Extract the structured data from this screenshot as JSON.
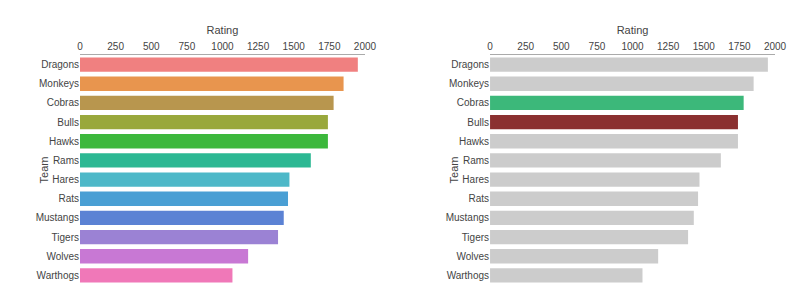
{
  "chart_data": [
    {
      "type": "bar",
      "orientation": "horizontal",
      "categories": [
        "Dragons",
        "Monkeys",
        "Cobras",
        "Bulls",
        "Hawks",
        "Rams",
        "Hares",
        "Rats",
        "Mustangs",
        "Tigers",
        "Wolves",
        "Warthogs"
      ],
      "values": [
        1950,
        1850,
        1780,
        1740,
        1740,
        1620,
        1470,
        1460,
        1430,
        1390,
        1180,
        1070
      ],
      "colors": [
        "#f08080",
        "#e8954e",
        "#b8964e",
        "#99a83c",
        "#3cb83c",
        "#2cb893",
        "#4db8c8",
        "#4a9fd4",
        "#5b82d4",
        "#9b82d4",
        "#c878d4",
        "#f078b8"
      ],
      "xlabel": "Rating",
      "ylabel": "Team",
      "xlim": [
        0,
        2000
      ],
      "xticks": [
        0,
        250,
        500,
        750,
        1000,
        1250,
        1500,
        1750,
        2000
      ],
      "grid": false
    },
    {
      "type": "bar",
      "orientation": "horizontal",
      "categories": [
        "Dragons",
        "Monkeys",
        "Cobras",
        "Bulls",
        "Hawks",
        "Rams",
        "Hares",
        "Rats",
        "Mustangs",
        "Tigers",
        "Wolves",
        "Warthogs"
      ],
      "values": [
        1950,
        1850,
        1780,
        1740,
        1740,
        1620,
        1470,
        1460,
        1430,
        1390,
        1180,
        1070
      ],
      "colors": [
        "#cccccc",
        "#cccccc",
        "#3cb87a",
        "#8b3030",
        "#cccccc",
        "#cccccc",
        "#cccccc",
        "#cccccc",
        "#cccccc",
        "#cccccc",
        "#cccccc",
        "#cccccc"
      ],
      "xlabel": "Rating",
      "ylabel": "Team",
      "xlim": [
        0,
        2000
      ],
      "xticks": [
        0,
        250,
        500,
        750,
        1000,
        1250,
        1500,
        1750,
        2000
      ],
      "grid": false
    }
  ]
}
